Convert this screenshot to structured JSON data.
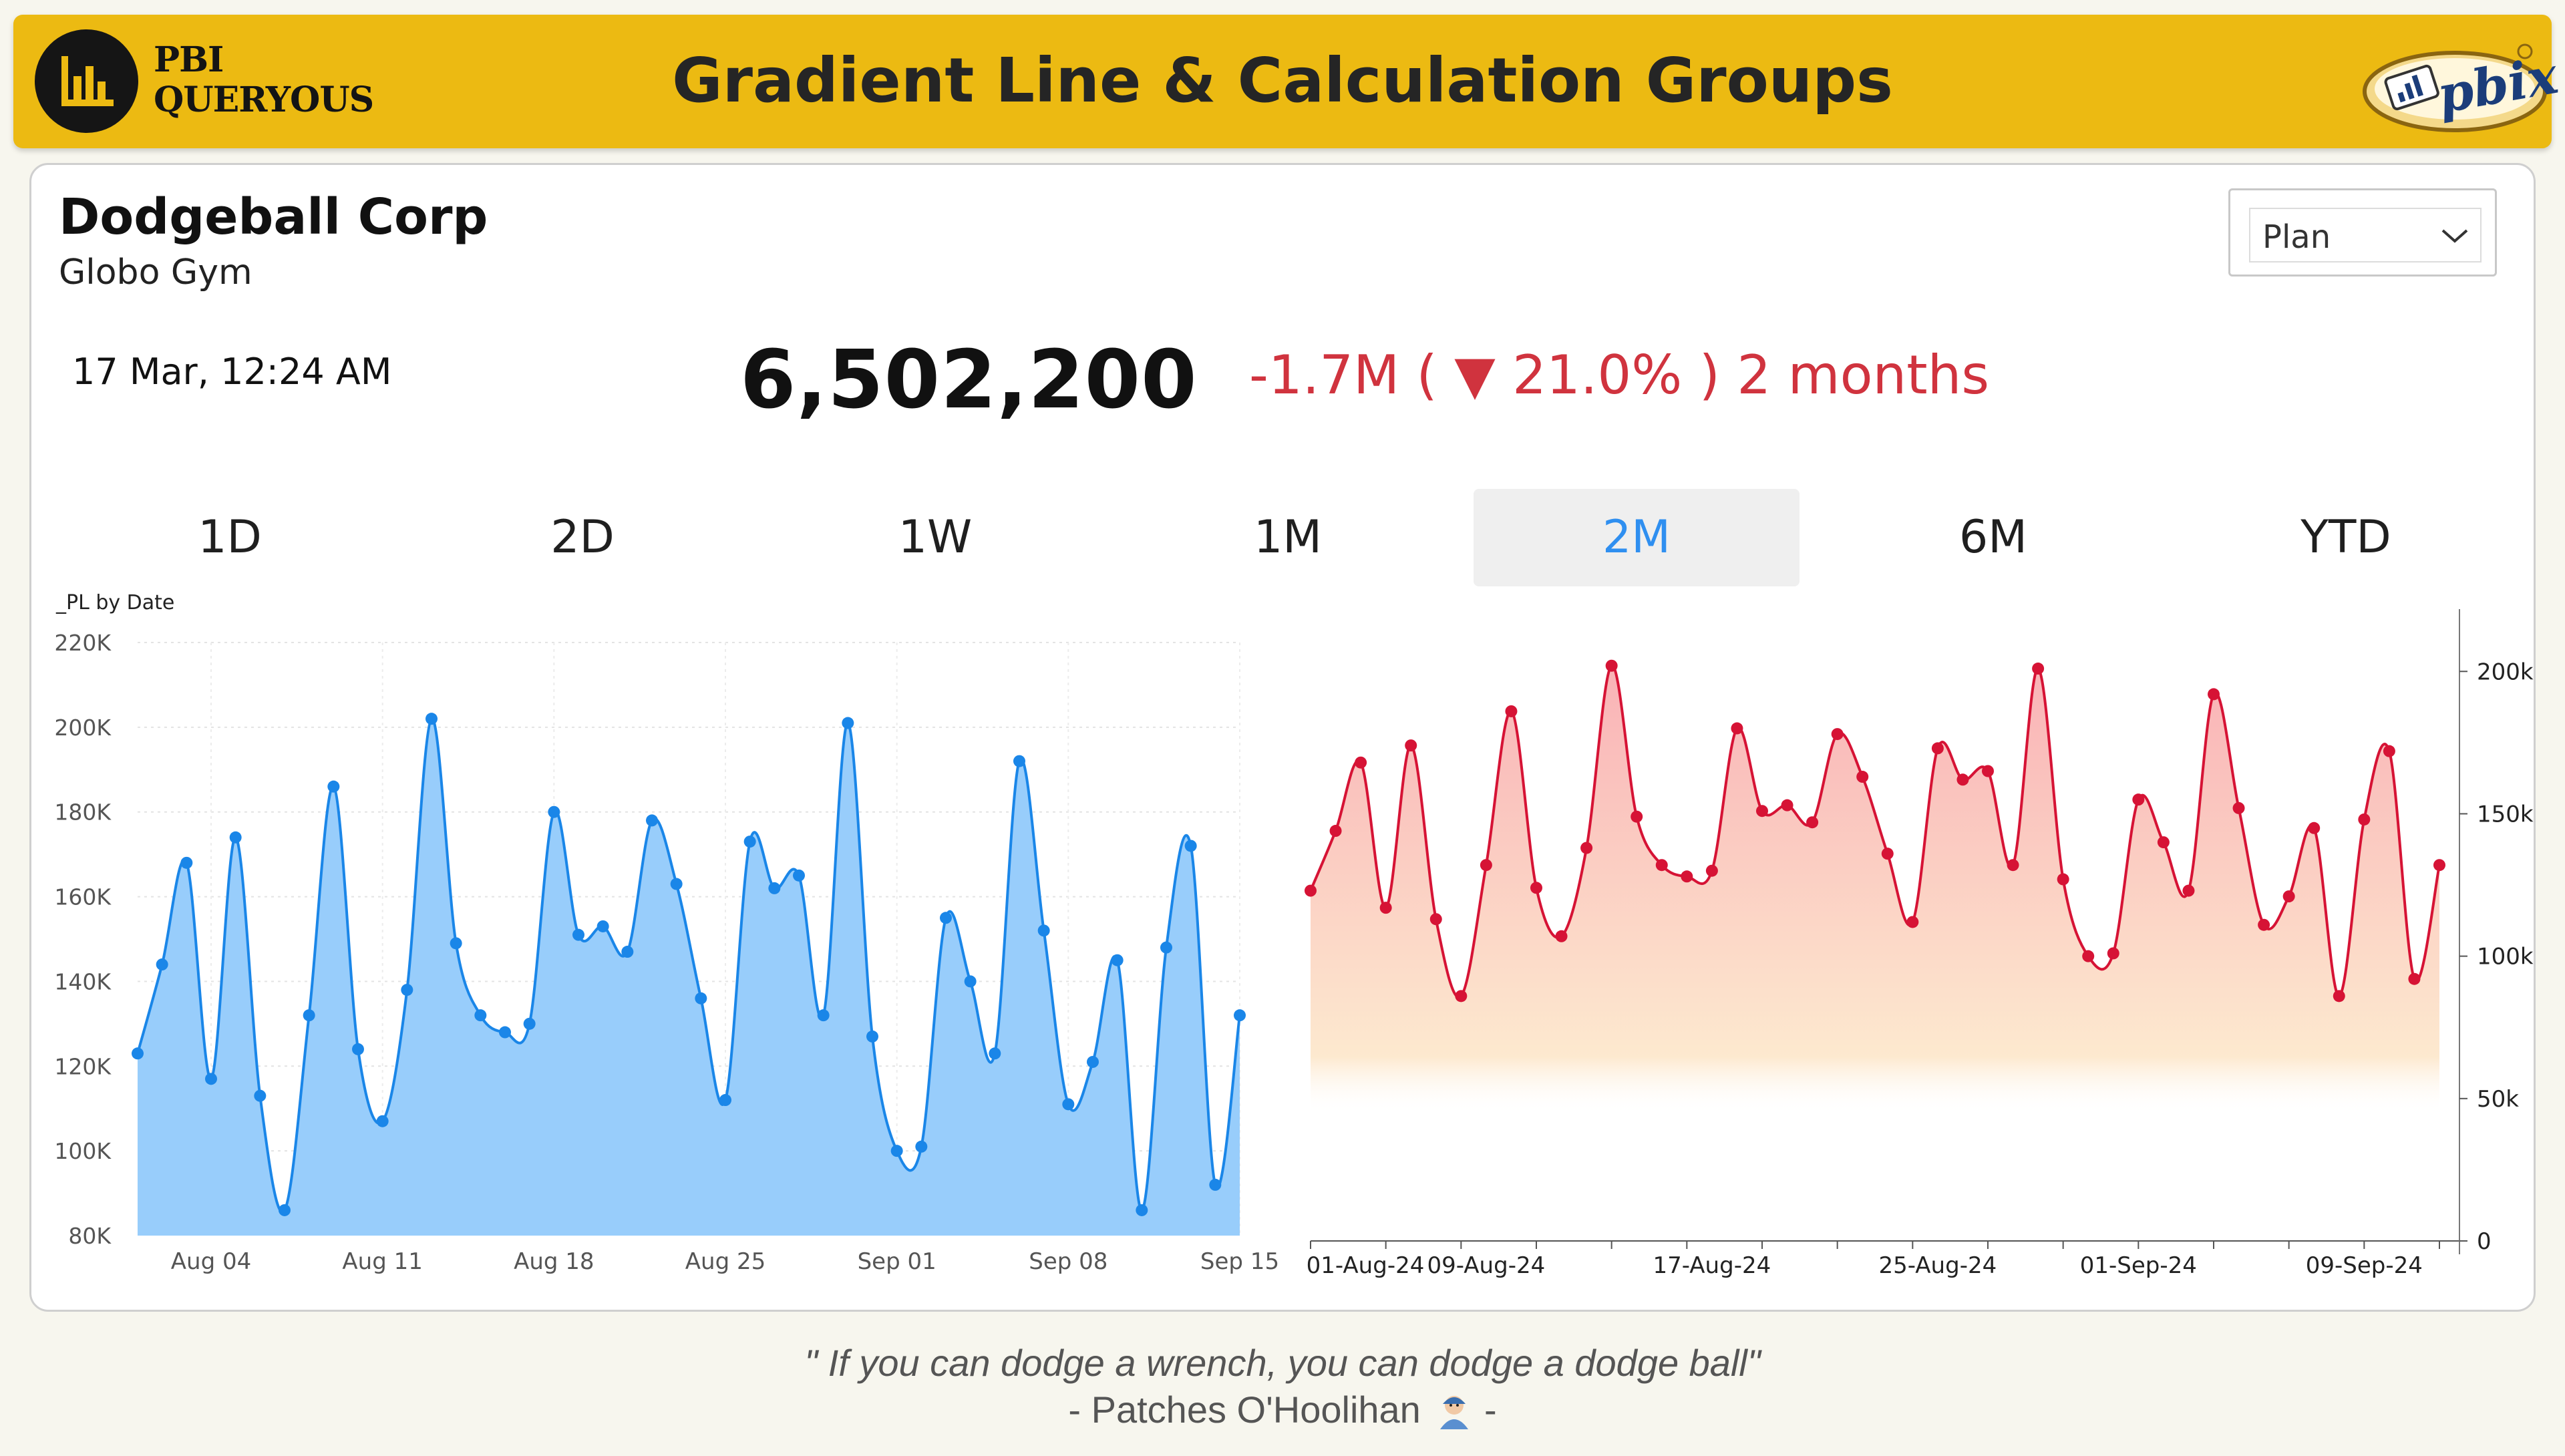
{
  "header": {
    "logo_line1": "PBI",
    "logo_line2": "QUERYOUS",
    "title": "Gradient Line & Calculation Groups",
    "badge_text": "pbix"
  },
  "card": {
    "company": "Dodgeball Corp",
    "subtitle": "Globo Gym",
    "datetime": "17 Mar, 12:24 AM",
    "value": "6,502,200",
    "change": "-1.7M ( ▼ 21.0% ) 2 months",
    "dropdown": {
      "selected": "Plan"
    }
  },
  "tabs": [
    "1D",
    "2D",
    "1W",
    "1M",
    "2M",
    "6M",
    "YTD"
  ],
  "active_tab": "2M",
  "colors": {
    "left_line": "#1a86e8",
    "left_fill": "#98cdfb",
    "right_line": "#d61335",
    "right_fill_top": "#f9b2b6",
    "right_fill_bottom": "#fde9cf",
    "accent": "#ecba12"
  },
  "quote": {
    "line1": "\" If you can dodge a wrench, you can dodge a dodge ball\"",
    "line2": "- Patches O'Hoolihan",
    "line2_end": " -"
  },
  "chart_data": [
    {
      "type": "area",
      "title": "_PL by Date",
      "x_tick_labels": [
        "Aug 04",
        "Aug 11",
        "Aug 18",
        "Aug 25",
        "Sep 01",
        "Sep 08",
        "Sep 15"
      ],
      "y_tick_labels": [
        "80K",
        "100K",
        "120K",
        "140K",
        "160K",
        "180K",
        "200K",
        "220K"
      ],
      "ylim": [
        80000,
        220000
      ],
      "grid": true,
      "series": [
        {
          "values": [
            123000,
            144000,
            168000,
            117000,
            174000,
            113000,
            86000,
            132000,
            186000,
            124000,
            107000,
            138000,
            202000,
            149000,
            132000,
            128000,
            130000,
            180000,
            151000,
            153000,
            147000,
            178000,
            163000,
            136000,
            112000,
            173000,
            162000,
            165000,
            132000,
            201000,
            127000,
            100000,
            101000,
            155000,
            140000,
            123000,
            192000,
            152000,
            111000,
            121000,
            145000,
            86000,
            148000,
            172000,
            92000,
            132000
          ]
        }
      ]
    },
    {
      "type": "area",
      "x_tick_labels": [
        "01-Aug-24",
        "09-Aug-24",
        "17-Aug-24",
        "25-Aug-24",
        "01-Sep-24",
        "09-Sep-24"
      ],
      "y_tick_labels": [
        "0",
        "50k",
        "100k",
        "150k",
        "200k"
      ],
      "ylim": [
        0,
        220000
      ],
      "y_axis_position": "right",
      "grid": false,
      "series": [
        {
          "values": [
            123000,
            144000,
            168000,
            117000,
            174000,
            113000,
            86000,
            132000,
            186000,
            124000,
            107000,
            138000,
            202000,
            149000,
            132000,
            128000,
            130000,
            180000,
            151000,
            153000,
            147000,
            178000,
            163000,
            136000,
            112000,
            173000,
            162000,
            165000,
            132000,
            201000,
            127000,
            100000,
            101000,
            155000,
            140000,
            123000,
            192000,
            152000,
            111000,
            121000,
            145000,
            86000,
            148000,
            172000,
            92000,
            132000
          ]
        }
      ]
    }
  ]
}
